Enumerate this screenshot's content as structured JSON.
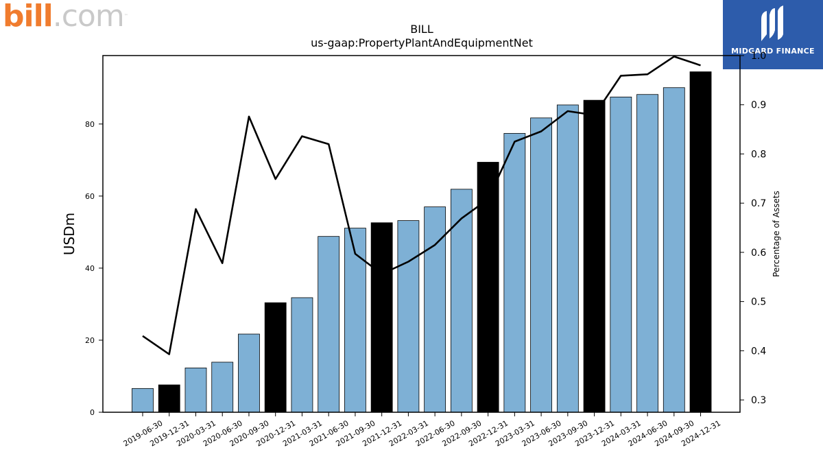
{
  "brand": {
    "left_logo": {
      "bill": "bill",
      "com": ".com",
      "tm": "™"
    },
    "right_logo": {
      "text": "MIDGARD FINANCE",
      "color": "#2d5cab"
    }
  },
  "chart_data": {
    "type": "bar",
    "title": "BILL",
    "subtitle": "us-gaap:PropertyPlantAndEquipmentNet",
    "ylabel": "USDm",
    "y2label": "Percentage of Assets",
    "ylim": [
      0,
      99
    ],
    "y2lim": [
      0.275,
      1.0
    ],
    "yticks": [
      0,
      20,
      40,
      60,
      80
    ],
    "y2ticks": [
      0.3,
      0.4,
      0.5,
      0.6,
      0.7,
      0.8,
      0.9,
      1.0
    ],
    "categories": [
      "2019-06-30",
      "2019-12-31",
      "2020-03-31",
      "2020-06-30",
      "2020-09-30",
      "2020-12-31",
      "2021-03-31",
      "2021-06-30",
      "2021-09-30",
      "2021-12-31",
      "2022-03-31",
      "2022-06-30",
      "2022-09-30",
      "2022-12-31",
      "2023-03-31",
      "2023-06-30",
      "2023-09-30",
      "2023-12-31",
      "2024-03-31",
      "2024-06-30",
      "2024-09-30",
      "2024-12-31"
    ],
    "series": [
      {
        "type": "bar",
        "values": [
          6.6,
          7.6,
          12.3,
          13.9,
          21.7,
          30.4,
          31.8,
          48.8,
          51.1,
          52.6,
          53.2,
          57.0,
          61.9,
          69.4,
          77.4,
          81.7,
          85.3,
          86.6,
          87.5,
          88.2,
          90.1,
          94.5
        ],
        "annual_flags": [
          false,
          true,
          false,
          false,
          false,
          true,
          false,
          false,
          false,
          true,
          false,
          false,
          false,
          true,
          false,
          false,
          false,
          true,
          false,
          false,
          false,
          true
        ],
        "color": "#7eb0d5",
        "annual_color": "#000000"
      },
      {
        "type": "line",
        "axis": "right",
        "values": [
          0.43,
          0.393,
          0.688,
          0.578,
          0.876,
          0.749,
          0.836,
          0.82,
          0.597,
          0.556,
          0.581,
          0.615,
          0.669,
          0.708,
          0.825,
          0.846,
          0.887,
          0.879,
          0.959,
          0.962,
          0.998,
          0.98
        ],
        "color": "#000000"
      }
    ]
  }
}
